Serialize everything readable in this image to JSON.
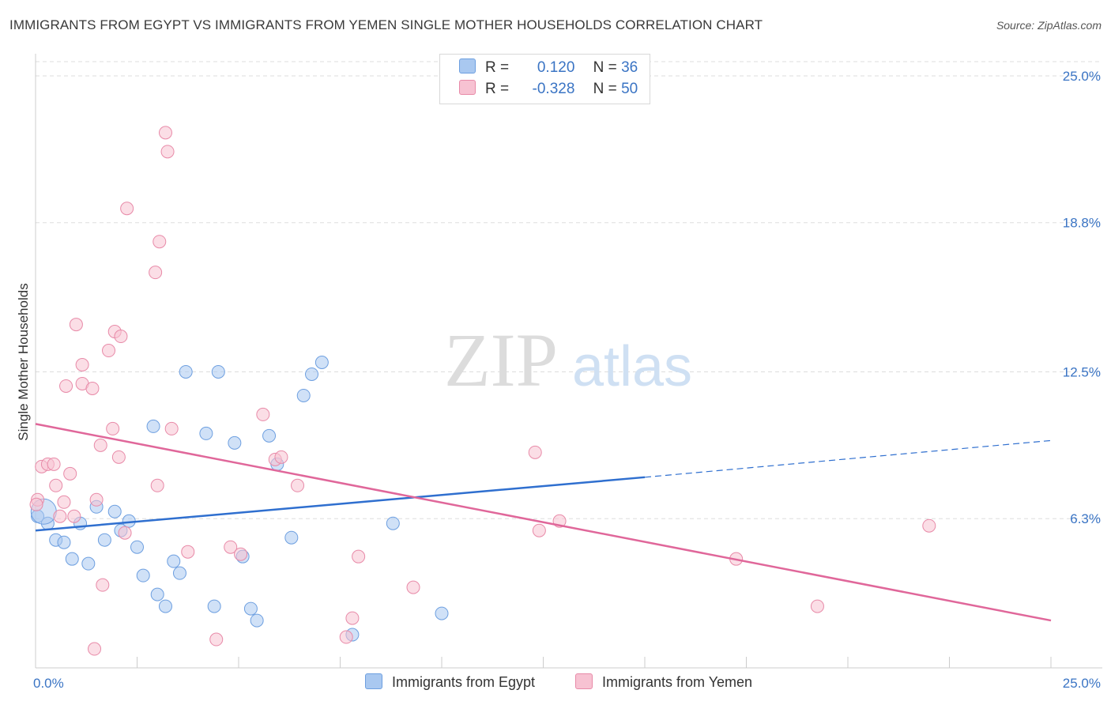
{
  "title": "IMMIGRANTS FROM EGYPT VS IMMIGRANTS FROM YEMEN SINGLE MOTHER HOUSEHOLDS CORRELATION CHART",
  "source": "Source: ZipAtlas.com",
  "watermark": {
    "zip": "ZIP",
    "atlas": "atlas"
  },
  "legend": {
    "r_label": "R =",
    "n_label": "N =",
    "rows": [
      {
        "r": "0.120",
        "n": "36",
        "color": "#a9c8f0",
        "border": "#6d9fe0"
      },
      {
        "r": "-0.328",
        "n": "50",
        "color": "#f7c2d2",
        "border": "#e88aa8"
      }
    ]
  },
  "bottom_legend": [
    "Immigrants from Egypt",
    "Immigrants from Yemen"
  ],
  "colors": {
    "egypt_fill": "#a9c8f0",
    "egypt_stroke": "#6d9fe0",
    "egypt_line": "#2f6fcf",
    "yemen_fill": "#f7c2d2",
    "yemen_stroke": "#e88aa8",
    "yemen_line": "#e0679a",
    "tick_text": "#3a74c4",
    "grid": "#dddddd"
  },
  "chart_data": {
    "type": "scatter",
    "xlabel": "",
    "ylabel": "Single Mother Households",
    "xlim": [
      0,
      25
    ],
    "ylim": [
      0,
      25.6
    ],
    "x_tick_labels": [
      {
        "value": 0,
        "label": "0.0%"
      },
      {
        "value": 25,
        "label": "25.0%"
      }
    ],
    "y_tick_labels": [
      {
        "value": 6.3,
        "label": "6.3%"
      },
      {
        "value": 12.5,
        "label": "12.5%"
      },
      {
        "value": 18.8,
        "label": "18.8%"
      },
      {
        "value": 25.0,
        "label": "25.0%"
      }
    ],
    "grid": "horizontal dashed",
    "series": [
      {
        "name": "Immigrants from Egypt",
        "points": [
          [
            0.05,
            6.4
          ],
          [
            0.3,
            6.1
          ],
          [
            0.5,
            5.4
          ],
          [
            0.7,
            5.3
          ],
          [
            0.9,
            4.6
          ],
          [
            1.1,
            6.1
          ],
          [
            1.3,
            4.4
          ],
          [
            1.5,
            6.8
          ],
          [
            1.7,
            5.4
          ],
          [
            1.95,
            6.6
          ],
          [
            2.1,
            5.8
          ],
          [
            2.3,
            6.2
          ],
          [
            2.5,
            5.1
          ],
          [
            2.65,
            3.9
          ],
          [
            2.9,
            10.2
          ],
          [
            3.0,
            3.1
          ],
          [
            3.2,
            2.6
          ],
          [
            3.4,
            4.5
          ],
          [
            3.55,
            4.0
          ],
          [
            3.7,
            12.5
          ],
          [
            4.2,
            9.9
          ],
          [
            4.4,
            2.6
          ],
          [
            4.5,
            12.5
          ],
          [
            4.9,
            9.5
          ],
          [
            5.1,
            4.7
          ],
          [
            5.3,
            2.5
          ],
          [
            5.45,
            2.0
          ],
          [
            5.75,
            9.8
          ],
          [
            5.95,
            8.6
          ],
          [
            6.3,
            5.5
          ],
          [
            6.6,
            11.5
          ],
          [
            6.8,
            12.4
          ],
          [
            7.05,
            12.9
          ],
          [
            7.8,
            1.4
          ],
          [
            8.8,
            6.1
          ],
          [
            10.0,
            2.3
          ]
        ]
      },
      {
        "name": "Immigrants from Yemen",
        "points": [
          [
            0.05,
            7.1
          ],
          [
            0.15,
            8.5
          ],
          [
            0.3,
            8.6
          ],
          [
            0.45,
            8.6
          ],
          [
            0.5,
            7.7
          ],
          [
            0.6,
            6.4
          ],
          [
            0.7,
            7.0
          ],
          [
            0.75,
            11.9
          ],
          [
            0.85,
            8.2
          ],
          [
            0.95,
            6.4
          ],
          [
            1.0,
            14.5
          ],
          [
            1.15,
            12.8
          ],
          [
            1.15,
            12.0
          ],
          [
            1.4,
            11.8
          ],
          [
            1.45,
            0.8
          ],
          [
            1.5,
            7.1
          ],
          [
            1.6,
            9.4
          ],
          [
            1.65,
            3.5
          ],
          [
            1.8,
            13.4
          ],
          [
            1.9,
            10.1
          ],
          [
            1.95,
            14.2
          ],
          [
            2.1,
            14.0
          ],
          [
            2.05,
            8.9
          ],
          [
            2.2,
            5.7
          ],
          [
            2.25,
            19.4
          ],
          [
            2.95,
            16.7
          ],
          [
            3.0,
            7.7
          ],
          [
            3.05,
            18.0
          ],
          [
            3.2,
            22.6
          ],
          [
            3.25,
            21.8
          ],
          [
            3.35,
            10.1
          ],
          [
            3.75,
            4.9
          ],
          [
            4.45,
            1.2
          ],
          [
            4.8,
            5.1
          ],
          [
            5.05,
            4.8
          ],
          [
            5.6,
            10.7
          ],
          [
            5.9,
            8.8
          ],
          [
            6.05,
            8.9
          ],
          [
            6.45,
            7.7
          ],
          [
            7.65,
            1.3
          ],
          [
            7.8,
            2.1
          ],
          [
            7.95,
            4.7
          ],
          [
            9.3,
            3.4
          ],
          [
            12.3,
            9.1
          ],
          [
            12.4,
            5.8
          ],
          [
            12.9,
            6.2
          ],
          [
            17.25,
            4.6
          ],
          [
            19.25,
            2.6
          ],
          [
            22.0,
            6.0
          ],
          [
            0.02,
            6.9
          ]
        ]
      }
    ],
    "trendlines": [
      {
        "series": "Immigrants from Egypt",
        "x0": 0,
        "y0": 5.8,
        "x1": 15,
        "y1": 8.05,
        "x_dashed_end": 25,
        "y_dashed_end": 9.6
      },
      {
        "series": "Immigrants from Yemen",
        "x0": 0,
        "y0": 10.3,
        "x1": 25,
        "y1": 2.0
      }
    ]
  }
}
